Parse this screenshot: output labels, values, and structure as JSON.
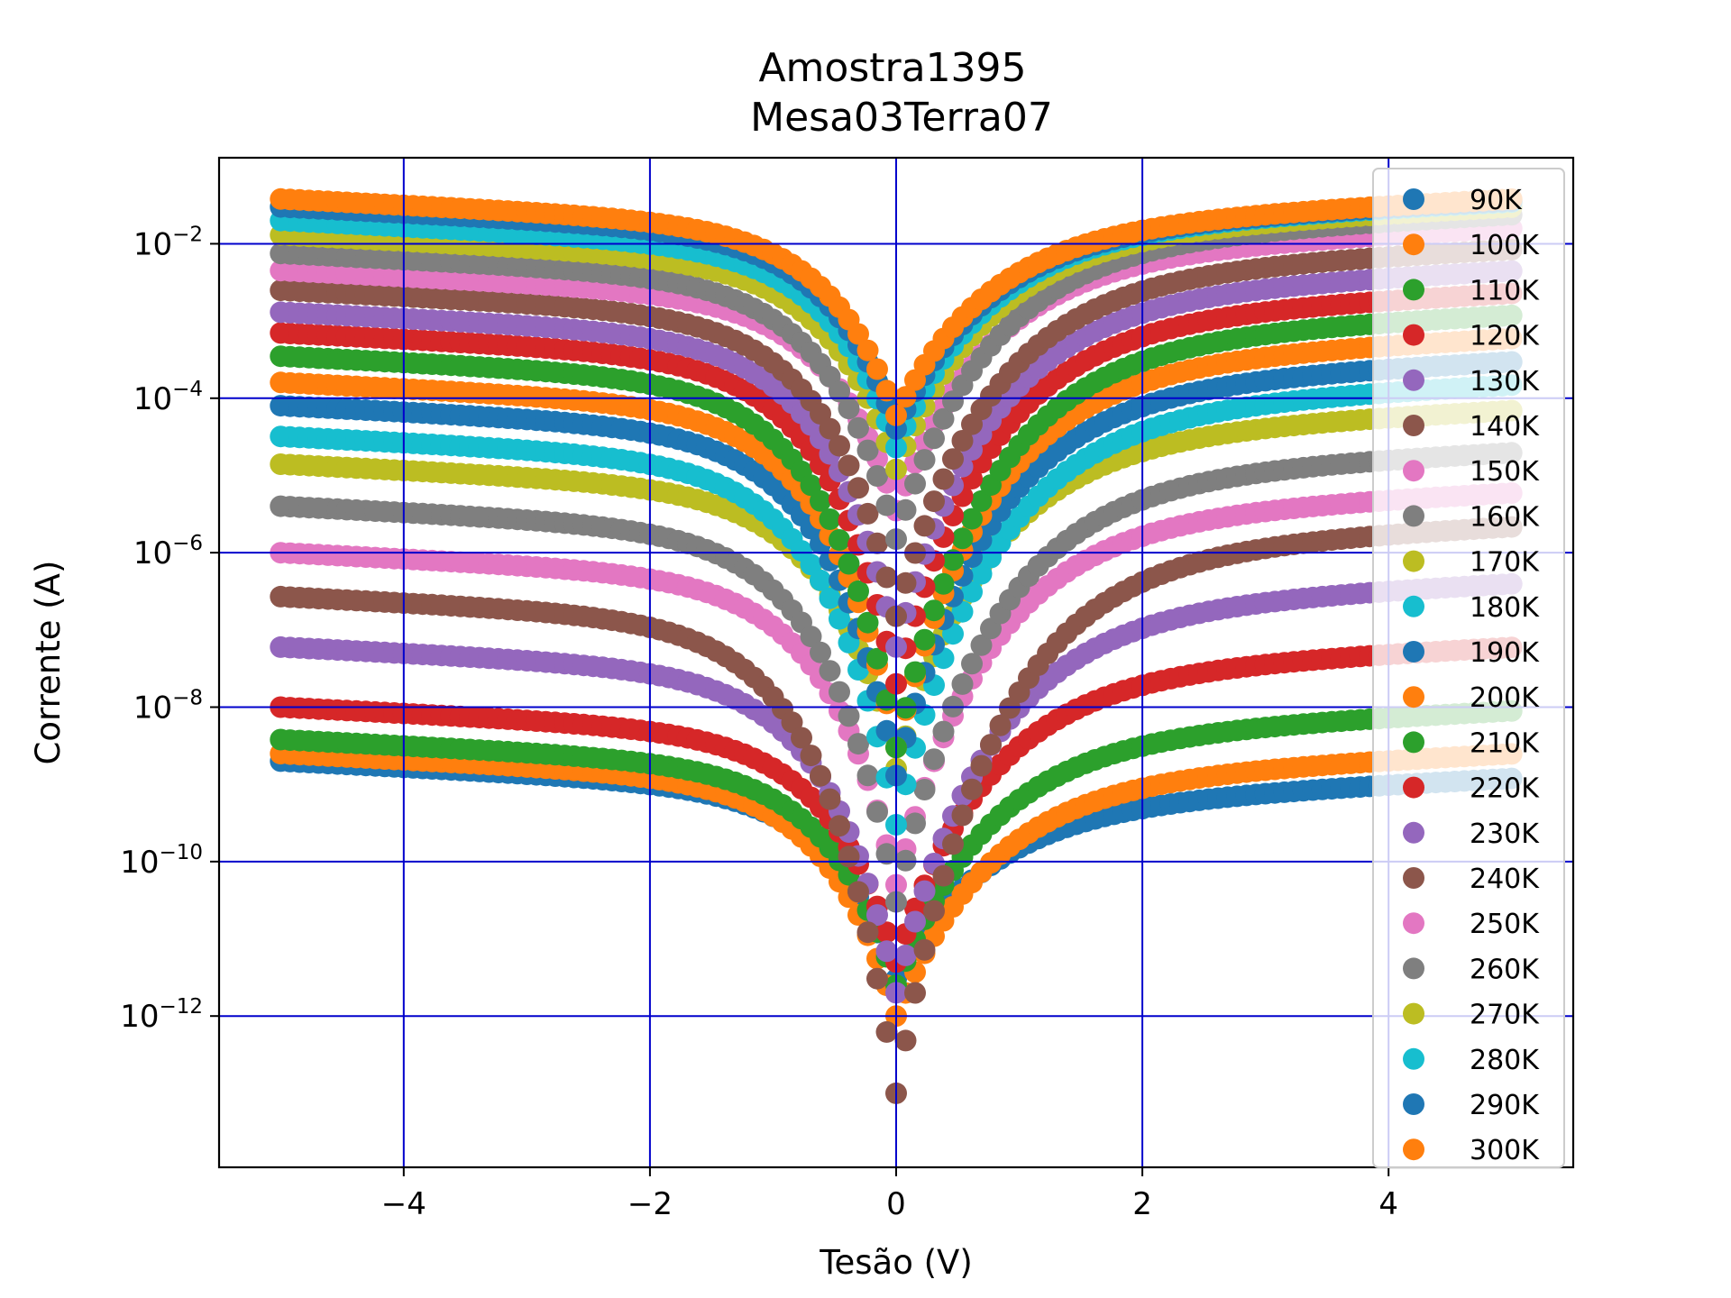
{
  "chart_data": {
    "type": "scatter",
    "title": [
      "Amostra1395",
      "Mesa03Terra07"
    ],
    "xlabel": "Tesão (V)",
    "ylabel": "Corrente (A)",
    "xscale": "linear",
    "yscale": "log",
    "xlim": [
      -5.5,
      5.5
    ],
    "ylim": [
      1.1e-14,
      0.13
    ],
    "xticks": [
      -4,
      -2,
      0,
      2,
      4
    ],
    "xtick_labels": [
      "−4",
      "−2",
      "0",
      "2",
      "4"
    ],
    "yticks": [
      1e-12,
      1e-10,
      1e-08,
      1e-06,
      0.0001,
      0.01
    ],
    "ytick_exponents": [
      "−12",
      "−10",
      "−8",
      "−6",
      "−4",
      "−2"
    ],
    "ytick_base": "10",
    "grid": true,
    "grid_color": "#0000cc",
    "legend_position": "upper right",
    "series": [
      {
        "name": "90K",
        "color": "#1f77b4",
        "left_end": 2e-09,
        "right_end": 1.2e-09,
        "dip_min": 3e-12
      },
      {
        "name": "100K",
        "color": "#ff7f0e",
        "left_end": 2.5e-09,
        "right_end": 2.5e-09,
        "dip_min": 1e-12
      },
      {
        "name": "110K",
        "color": "#2ca02c",
        "left_end": 3.8e-09,
        "right_end": 9e-09,
        "dip_min": 2.5e-12
      },
      {
        "name": "120K",
        "color": "#d62728",
        "left_end": 1e-08,
        "right_end": 6e-08,
        "dip_min": 5e-12
      },
      {
        "name": "130K",
        "color": "#9467bd",
        "left_end": 6e-08,
        "right_end": 4e-07,
        "dip_min": 2e-12
      },
      {
        "name": "140K",
        "color": "#8c564b",
        "left_end": 2.7e-07,
        "right_end": 2.2e-06,
        "dip_min": 1e-13
      },
      {
        "name": "150K",
        "color": "#e377c2",
        "left_end": 1e-06,
        "right_end": 6e-06,
        "dip_min": 5e-11
      },
      {
        "name": "160K",
        "color": "#7f7f7f",
        "left_end": 4e-06,
        "right_end": 2e-05,
        "dip_min": 3e-11
      },
      {
        "name": "170K",
        "color": "#bcbd22",
        "left_end": 1.4e-05,
        "right_end": 7e-05,
        "dip_min": 1.6e-09
      },
      {
        "name": "180K",
        "color": "#17becf",
        "left_end": 3.2e-05,
        "right_end": 0.00015,
        "dip_min": 3e-10
      },
      {
        "name": "190K",
        "color": "#1f77b4",
        "left_end": 8e-05,
        "right_end": 0.0003,
        "dip_min": 1.3e-09
      },
      {
        "name": "200K",
        "color": "#ff7f0e",
        "left_end": 0.00016,
        "right_end": 0.0006,
        "dip_min": 3e-09
      },
      {
        "name": "210K",
        "color": "#2ca02c",
        "left_end": 0.00035,
        "right_end": 0.0012,
        "dip_min": 3e-09
      },
      {
        "name": "220K",
        "color": "#d62728",
        "left_end": 0.0007,
        "right_end": 0.0023,
        "dip_min": 2e-08
      },
      {
        "name": "230K",
        "color": "#9467bd",
        "left_end": 0.0013,
        "right_end": 0.0045,
        "dip_min": 6e-08
      },
      {
        "name": "240K",
        "color": "#8c564b",
        "left_end": 0.0025,
        "right_end": 0.0085,
        "dip_min": 1.5e-07
      },
      {
        "name": "250K",
        "color": "#e377c2",
        "left_end": 0.0045,
        "right_end": 0.016,
        "dip_min": 3.5e-06
      },
      {
        "name": "260K",
        "color": "#7f7f7f",
        "left_end": 0.0075,
        "right_end": 0.024,
        "dip_min": 1.5e-06
      },
      {
        "name": "270K",
        "color": "#bcbd22",
        "left_end": 0.013,
        "right_end": 0.03,
        "dip_min": 1.2e-05
      },
      {
        "name": "280K",
        "color": "#17becf",
        "left_end": 0.02,
        "right_end": 0.035,
        "dip_min": 2.3e-05
      },
      {
        "name": "290K",
        "color": "#1f77b4",
        "left_end": 0.03,
        "right_end": 0.036,
        "dip_min": 4e-05
      },
      {
        "name": "300K",
        "color": "#ff7f0e",
        "left_end": 0.038,
        "right_end": 0.038,
        "dip_min": 6e-05
      }
    ]
  }
}
